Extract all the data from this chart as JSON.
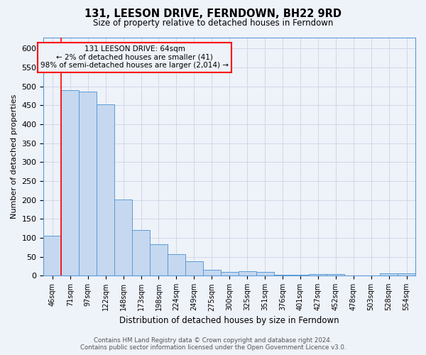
{
  "title": "131, LEESON DRIVE, FERNDOWN, BH22 9RD",
  "subtitle": "Size of property relative to detached houses in Ferndown",
  "xlabel": "Distribution of detached houses by size in Ferndown",
  "ylabel": "Number of detached properties",
  "footer_line1": "Contains HM Land Registry data © Crown copyright and database right 2024.",
  "footer_line2": "Contains public sector information licensed under the Open Government Licence v3.0.",
  "bar_labels": [
    "46sqm",
    "71sqm",
    "97sqm",
    "122sqm",
    "148sqm",
    "173sqm",
    "198sqm",
    "224sqm",
    "249sqm",
    "275sqm",
    "300sqm",
    "325sqm",
    "351sqm",
    "376sqm",
    "401sqm",
    "427sqm",
    "452sqm",
    "478sqm",
    "503sqm",
    "528sqm",
    "554sqm"
  ],
  "bar_values": [
    105,
    490,
    487,
    453,
    201,
    120,
    83,
    56,
    38,
    15,
    10,
    12,
    10,
    2,
    2,
    5,
    5,
    0,
    0,
    6,
    6
  ],
  "bar_color": "#c5d8f0",
  "bar_edge_color": "#5b9bd5",
  "ylim": [
    0,
    630
  ],
  "yticks": [
    0,
    50,
    100,
    150,
    200,
    250,
    300,
    350,
    400,
    450,
    500,
    550,
    600
  ],
  "red_line_x": 1.0,
  "annotation_text_line1": "131 LEESON DRIVE: 64sqm",
  "annotation_text_line2": "← 2% of detached houses are smaller (41)",
  "annotation_text_line3": "98% of semi-detached houses are larger (2,014) →",
  "background_color": "#eef2f9",
  "grid_color": "#ccd4e4"
}
